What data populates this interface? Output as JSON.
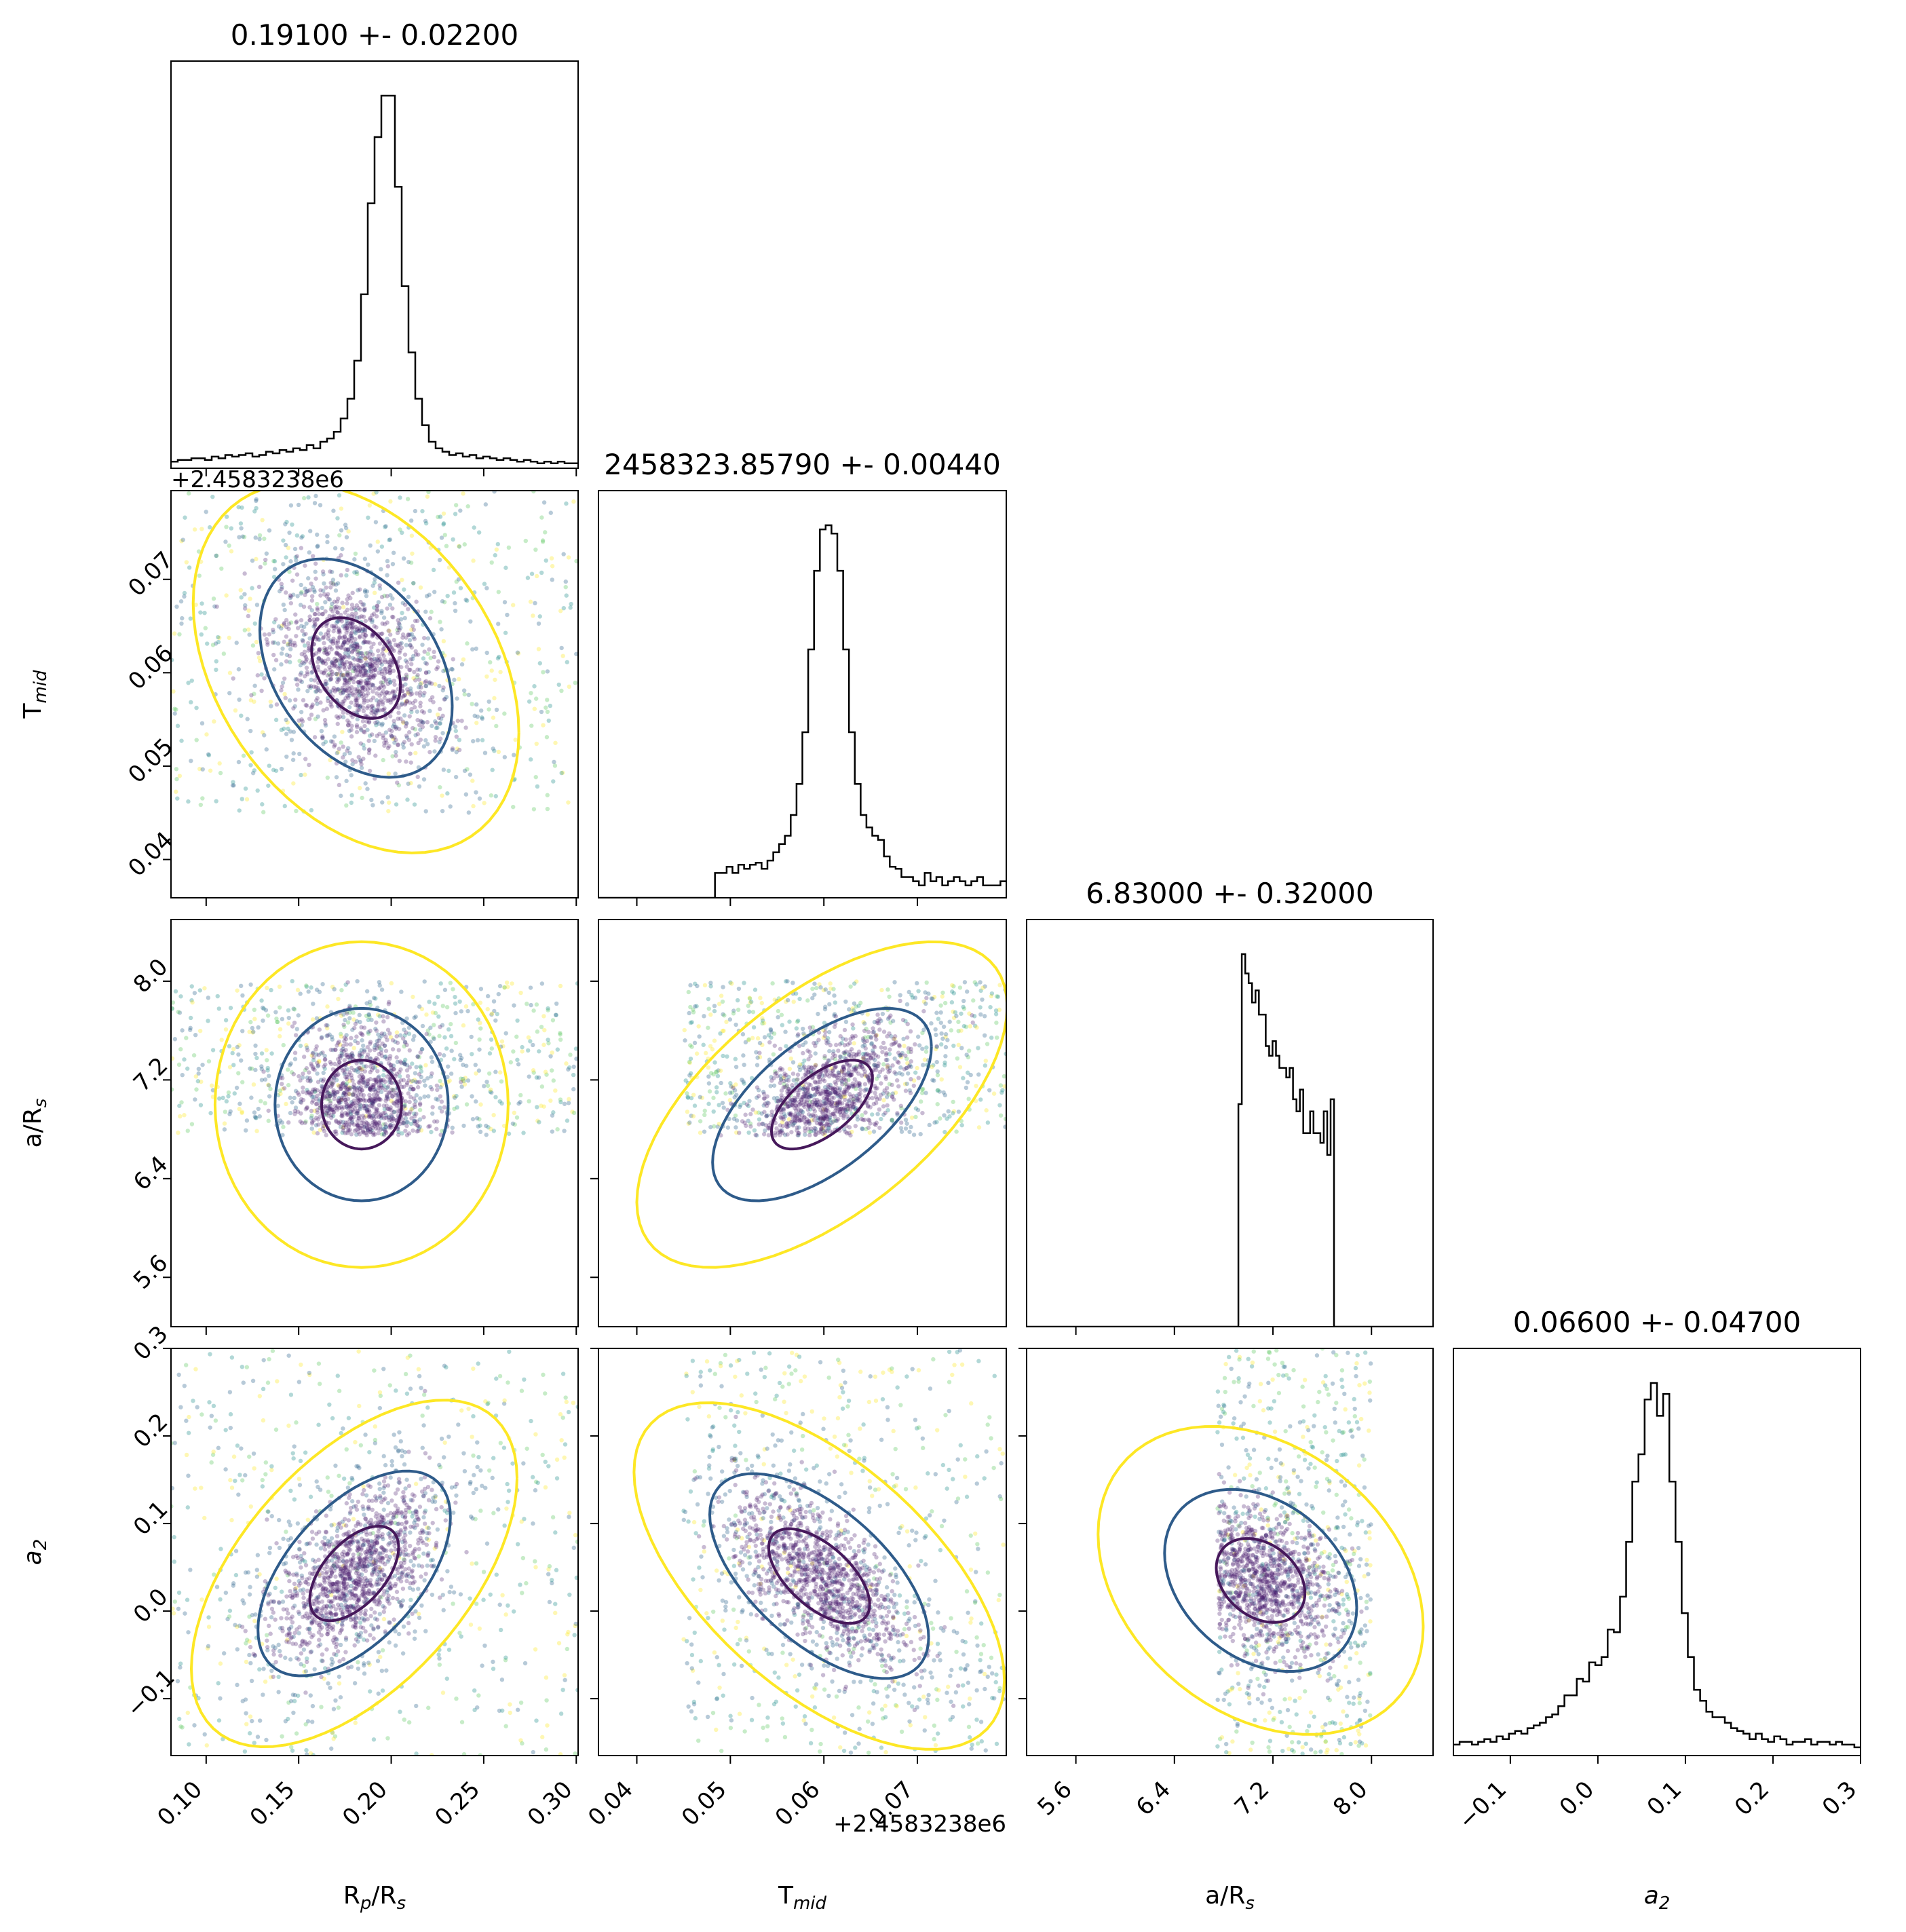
{
  "chart_data": {
    "type": "corner",
    "parameters": [
      {
        "key": "rp",
        "label": "R",
        "label_sub": "p",
        "label_mid": "/R",
        "label_sub2": "s",
        "range": [
          0.081,
          0.301
        ]
      },
      {
        "key": "tmid",
        "label": "T",
        "label_sub": "mid",
        "label_mid": "",
        "label_sub2": "",
        "range": [
          0.0359,
          0.0795
        ],
        "offset_text": "+2.4583238e6"
      },
      {
        "key": "ars",
        "label": "a/R",
        "label_sub": "s",
        "label_mid": "",
        "label_sub2": "",
        "range": [
          5.2,
          8.5
        ]
      },
      {
        "key": "a2",
        "label": "a",
        "label_sub": "2",
        "label_mid": "",
        "label_sub2": "",
        "italic": true,
        "range": [
          -0.165,
          0.3
        ]
      }
    ],
    "titles": [
      "0.19100 +- 0.02200",
      "2458323.85790 +- 0.00440",
      "6.83000 +- 0.32000",
      "0.06600 +- 0.04700"
    ],
    "ticks": {
      "rp": [
        "0.10",
        "0.15",
        "0.20",
        "0.25",
        "0.30"
      ],
      "tmid": [
        "0.04",
        "0.05",
        "0.06",
        "0.07"
      ],
      "ars": [
        "5.6",
        "6.4",
        "7.2",
        "8.0"
      ],
      "a2": [
        "−0.1",
        "0.0",
        "0.1",
        "0.2",
        "0.3"
      ]
    },
    "tick_values": {
      "rp": [
        0.1,
        0.15,
        0.2,
        0.25,
        0.3
      ],
      "tmid": [
        0.04,
        0.05,
        0.06,
        0.07
      ],
      "ars": [
        5.6,
        6.4,
        7.2,
        8.0
      ],
      "a2": [
        -0.1,
        0.0,
        0.1,
        0.2,
        0.3
      ]
    },
    "offset_labels": [
      "+2.4583238e6",
      "+2.4583238e6"
    ],
    "marginals": [
      {
        "param": "rp",
        "bin_range": [
          0.081,
          0.301
        ],
        "counts": [
          4,
          5,
          5,
          6,
          6,
          5,
          7,
          6,
          8,
          7,
          8,
          9,
          7,
          8,
          10,
          9,
          11,
          10,
          12,
          11,
          14,
          12,
          16,
          18,
          22,
          30,
          42,
          65,
          105,
          160,
          200,
          225,
          225,
          170,
          110,
          70,
          42,
          26,
          16,
          12,
          10,
          8,
          9,
          7,
          8,
          6,
          7,
          6,
          5,
          6,
          5,
          4,
          5,
          4,
          3,
          4,
          3,
          4,
          3,
          3
        ]
      },
      {
        "param": "tmid",
        "bin_range": [
          0.0359,
          0.0795
        ],
        "counts": [
          0,
          0,
          0,
          0,
          0,
          0,
          0,
          0,
          0,
          0,
          0,
          0,
          0,
          0,
          0,
          0,
          0,
          0,
          0,
          0,
          12,
          12,
          15,
          12,
          16,
          14,
          16,
          17,
          14,
          18,
          22,
          26,
          30,
          40,
          55,
          80,
          120,
          158,
          178,
          180,
          176,
          158,
          120,
          80,
          55,
          40,
          34,
          30,
          28,
          20,
          15,
          14,
          10,
          10,
          8,
          6,
          12,
          8,
          10,
          6,
          8,
          10,
          8,
          6,
          8,
          10,
          6,
          6,
          6,
          8
        ]
      },
      {
        "param": "ars",
        "bin_range": [
          5.2,
          8.5
        ],
        "counts": [
          0,
          0,
          0,
          0,
          0,
          0,
          0,
          0,
          0,
          0,
          0,
          0,
          0,
          0,
          0,
          0,
          0,
          0,
          0,
          0,
          0,
          0,
          0,
          0,
          0,
          0,
          0,
          0,
          0,
          0,
          0,
          0,
          0,
          0,
          0,
          0,
          0,
          0,
          0,
          0,
          0,
          0,
          0,
          0,
          0,
          0,
          0,
          0,
          0,
          0,
          0,
          0,
          0,
          0,
          0,
          0,
          0,
          0,
          0,
          0,
          0,
          0,
          92,
          154,
          146,
          142,
          134,
          139,
          129,
          129,
          116,
          112,
          118,
          112,
          107,
          107,
          103,
          107,
          94,
          89,
          98,
          80,
          80,
          89,
          80,
          80,
          76,
          89,
          71,
          94,
          0,
          0,
          0,
          0,
          0,
          0,
          0,
          0,
          0,
          0,
          0,
          0,
          0,
          0,
          0,
          0,
          0,
          0,
          0,
          0,
          0,
          0,
          0,
          0,
          0,
          0,
          0,
          0,
          0
        ]
      },
      {
        "param": "a2",
        "bin_range": [
          -0.165,
          0.3
        ],
        "counts": [
          4,
          5,
          5,
          4,
          5,
          6,
          5,
          7,
          6,
          8,
          9,
          8,
          10,
          11,
          12,
          14,
          15,
          18,
          22,
          22,
          28,
          27,
          34,
          33,
          36,
          46,
          45,
          58,
          78,
          100,
          110,
          130,
          136,
          124,
          132,
          100,
          78,
          52,
          36,
          24,
          20,
          16,
          14,
          14,
          12,
          10,
          9,
          8,
          6,
          8,
          6,
          5,
          7,
          6,
          4,
          5,
          5,
          6,
          4,
          5,
          5,
          4,
          5,
          4,
          4,
          3
        ]
      }
    ],
    "pairs": [
      {
        "x": "rp",
        "y": "tmid",
        "center": [
          0.181,
          0.0605
        ],
        "sigma": [
          0.02,
          0.0045
        ],
        "rho": -0.35,
        "clip_y": [
          0.045,
          0.0795
        ]
      },
      {
        "x": "rp",
        "y": "ars",
        "center": [
          0.184,
          7.0
        ],
        "sigma": [
          0.018,
          0.3
        ],
        "rho": 0.0,
        "clip_y": [
          6.75,
          8.0
        ]
      },
      {
        "x": "tmid",
        "y": "ars",
        "center": [
          0.0598,
          7.0
        ],
        "sigma": [
          0.0045,
          0.3
        ],
        "rho": 0.6,
        "clip_x": [
          0.045,
          0.0795
        ],
        "clip_y": [
          6.75,
          8.0
        ]
      },
      {
        "x": "rp",
        "y": "a2",
        "center": [
          0.18,
          0.043
        ],
        "sigma": [
          0.02,
          0.045
        ],
        "rho": 0.55
      },
      {
        "x": "tmid",
        "y": "a2",
        "center": [
          0.0595,
          0.04
        ],
        "sigma": [
          0.0045,
          0.045
        ],
        "rho": -0.6,
        "clip_x": [
          0.045,
          0.0795
        ]
      },
      {
        "x": "ars",
        "y": "a2",
        "center": [
          7.1,
          0.035
        ],
        "sigma": [
          0.3,
          0.04
        ],
        "rho": -0.3,
        "clip_x": [
          6.75,
          8.0
        ]
      }
    ],
    "contour_levels": [
      "inner",
      "mid",
      "outer"
    ],
    "colors": {
      "hist": "#000000",
      "inner_contour": "#46185b",
      "mid_contour": "#2e5b8a",
      "outer_contour": "#fde725",
      "points_core": "#481a6c",
      "points_mid": "#31688e",
      "points_teal": "#21908d",
      "points_green": "#5ec962",
      "points_yellow": "#fde725"
    },
    "grid": false,
    "legend": "none"
  }
}
